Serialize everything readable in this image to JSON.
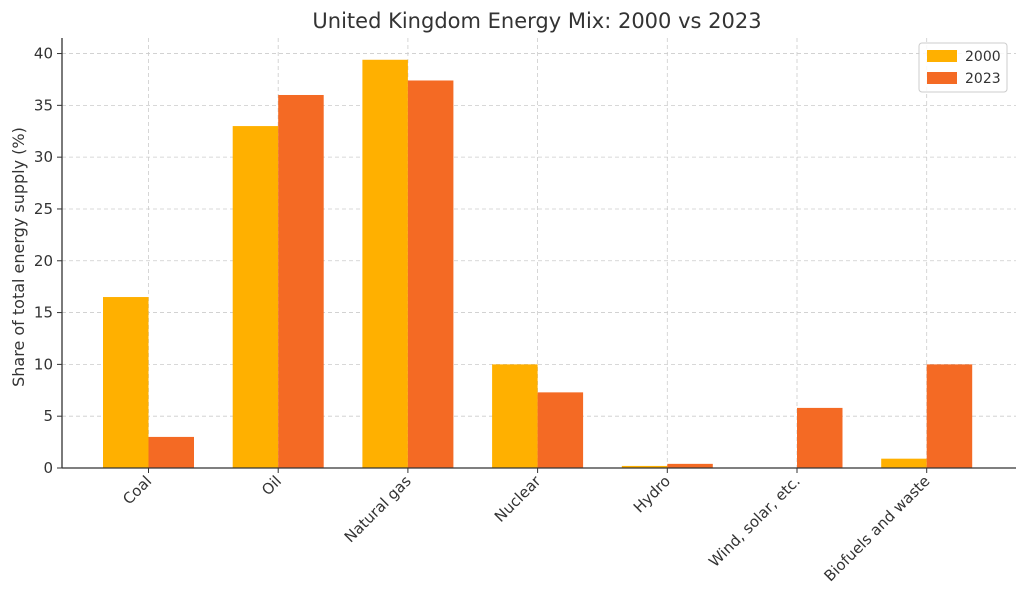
{
  "chart_data": {
    "type": "bar",
    "title": "United Kingdom Energy Mix: 2000 vs 2023",
    "xlabel": "",
    "ylabel": "Share of total energy supply (%)",
    "categories": [
      "Coal",
      "Oil",
      "Natural gas",
      "Nuclear",
      "Hydro",
      "Wind, solar, etc.",
      "Biofuels and waste"
    ],
    "series": [
      {
        "name": "2000",
        "color": "#FFB000",
        "values": [
          16.5,
          33.0,
          39.4,
          10.0,
          0.2,
          0.0,
          0.9
        ]
      },
      {
        "name": "2023",
        "color": "#F46A24",
        "values": [
          3.0,
          36.0,
          37.4,
          7.3,
          0.4,
          5.8,
          10.0
        ]
      }
    ],
    "ylim": [
      0,
      41.5
    ],
    "yticks": [
      0,
      5,
      10,
      15,
      20,
      25,
      30,
      35,
      40
    ],
    "grid": true,
    "legend_position": "top-right"
  }
}
